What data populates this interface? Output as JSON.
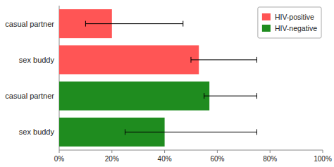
{
  "chart_data": {
    "type": "bar",
    "orientation": "horizontal",
    "categories": [
      "casual partner",
      "sex buddy",
      "casual partner",
      "sex buddy"
    ],
    "series": [
      {
        "name": "HIV-positive",
        "color": "#ff5555",
        "values": [
          0.2,
          0.53,
          null,
          null
        ],
        "error_low": [
          0.1,
          0.5,
          null,
          null
        ],
        "error_high": [
          0.47,
          0.75,
          null,
          null
        ]
      },
      {
        "name": "HIV-negative",
        "color": "#1f8c1f",
        "values": [
          null,
          null,
          0.57,
          0.4
        ],
        "error_low": [
          null,
          null,
          0.55,
          0.25
        ],
        "error_high": [
          null,
          null,
          0.75,
          0.75
        ]
      }
    ],
    "xlim": [
      0,
      1.0
    ],
    "xticks": [
      {
        "value": 0.0,
        "label": "0%"
      },
      {
        "value": 0.2,
        "label": "20%"
      },
      {
        "value": 0.4,
        "label": "40%"
      },
      {
        "value": 0.6,
        "label": "60%"
      },
      {
        "value": 0.8,
        "label": "80%"
      },
      {
        "value": 1.0,
        "label": "100%"
      }
    ],
    "legend": "upper right"
  }
}
